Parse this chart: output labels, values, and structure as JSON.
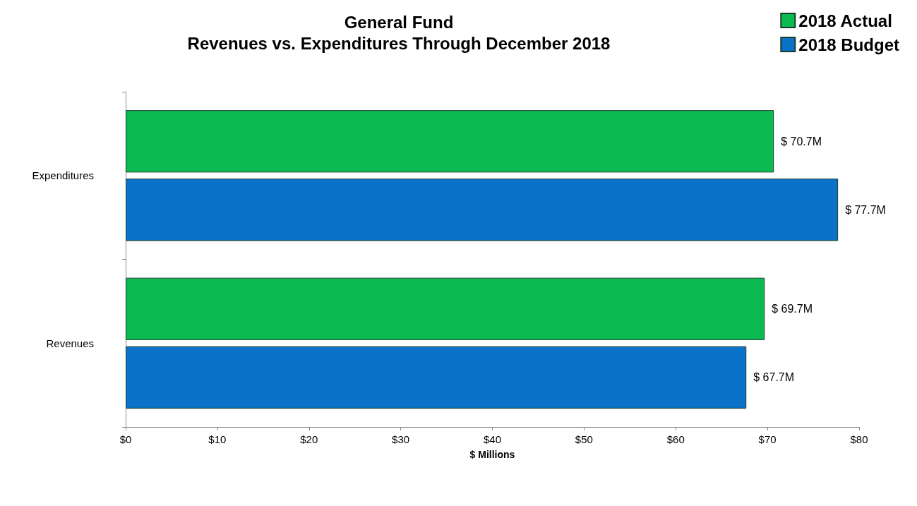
{
  "chart_data": {
    "type": "bar",
    "orientation": "horizontal",
    "title": "General Fund",
    "subtitle": "Revenues vs. Expenditures Through December 2018",
    "xlabel": "$ Millions",
    "categories": [
      "Expenditures",
      "Revenues"
    ],
    "series": [
      {
        "name": "2018 Actual",
        "color": "#0cba52",
        "values": [
          70.7,
          69.7
        ],
        "value_labels": [
          "$ 70.7M",
          "$ 69.7M"
        ]
      },
      {
        "name": "2018 Budget",
        "color": "#0a72c8",
        "values": [
          77.7,
          67.7
        ],
        "value_labels": [
          "$ 77.7M",
          "$ 67.7M"
        ]
      }
    ],
    "xlim": [
      0,
      80
    ],
    "xticks": [
      {
        "value": 0,
        "label": "$0"
      },
      {
        "value": 10,
        "label": "$10"
      },
      {
        "value": 20,
        "label": "$20"
      },
      {
        "value": 30,
        "label": "$30"
      },
      {
        "value": 40,
        "label": "$40"
      },
      {
        "value": 50,
        "label": "$50"
      },
      {
        "value": 60,
        "label": "$60"
      },
      {
        "value": 70,
        "label": "$70"
      },
      {
        "value": 80,
        "label": "$80"
      }
    ],
    "grid": false,
    "legend": "top right"
  }
}
